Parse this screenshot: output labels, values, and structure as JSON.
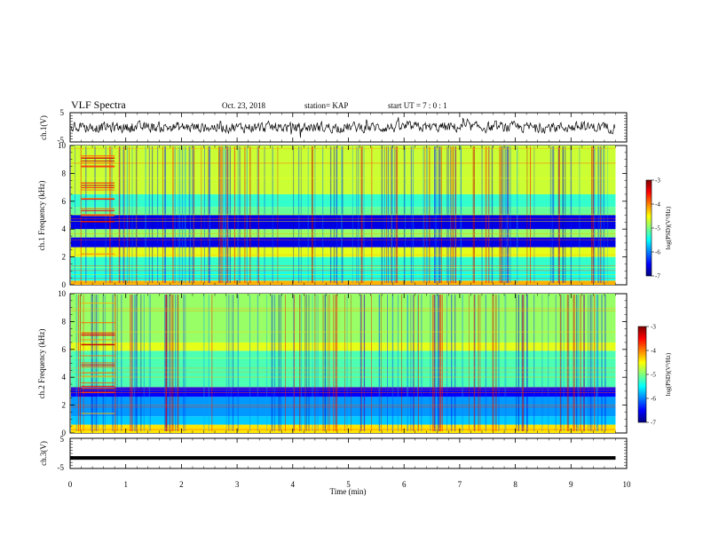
{
  "header": {
    "title": "VLF Spectra",
    "date": "Oct. 23, 2018",
    "station": "station= KAP",
    "start_ut": "start  UT =   7 : 0  : 1"
  },
  "chart_data": [
    {
      "type": "line",
      "panel": "ch1-waveform",
      "ylabel": "ch.1(V)",
      "ylim": [
        -5,
        5
      ],
      "yticks": [
        "5",
        "-5"
      ],
      "xlim": [
        0,
        10
      ],
      "series_style": "noisy waveform, approx. range -2.5 to 2.5 V"
    },
    {
      "type": "heatmap",
      "panel": "ch1-spectrogram",
      "ylabel": "ch.1 Frequency (kHz)",
      "ylim": [
        0,
        10
      ],
      "yticks": [
        "0",
        "2",
        "4",
        "6",
        "8",
        "10"
      ],
      "colorbar": {
        "label": "log(PSD)(V²/Hz)",
        "range": [
          -7,
          -3
        ],
        "ticks": [
          "-3",
          "-4",
          "-5",
          "-6",
          "-7"
        ],
        "colormap": "jet"
      },
      "bands": [
        {
          "f_lo": 0.0,
          "f_hi": 0.3,
          "level": -4.2
        },
        {
          "f_lo": 0.3,
          "f_hi": 1.0,
          "level": -5.4
        },
        {
          "f_lo": 1.0,
          "f_hi": 2.0,
          "level": -5.3
        },
        {
          "f_lo": 2.0,
          "f_hi": 2.7,
          "level": -4.6
        },
        {
          "f_lo": 2.7,
          "f_hi": 3.4,
          "level": -6.6
        },
        {
          "f_lo": 3.4,
          "f_hi": 4.0,
          "level": -4.9
        },
        {
          "f_lo": 4.0,
          "f_hi": 5.0,
          "level": -6.6
        },
        {
          "f_lo": 5.0,
          "f_hi": 5.6,
          "level": -5.1
        },
        {
          "f_lo": 5.6,
          "f_hi": 6.5,
          "level": -5.3
        },
        {
          "f_lo": 6.5,
          "f_hi": 10.0,
          "level": -4.7
        }
      ]
    },
    {
      "type": "heatmap",
      "panel": "ch2-spectrogram",
      "ylabel": "ch.2 Frequency (kHz)",
      "ylim": [
        0,
        10
      ],
      "yticks": [
        "0",
        "2",
        "4",
        "6",
        "8",
        "10"
      ],
      "colorbar": {
        "label": "log(PSD)(V²/Hz)",
        "range": [
          -7,
          -3
        ],
        "ticks": [
          "-3",
          "-4",
          "-5",
          "-6",
          "-7"
        ],
        "colormap": "jet"
      },
      "bands": [
        {
          "f_lo": 0.0,
          "f_hi": 0.6,
          "level": -4.4
        },
        {
          "f_lo": 0.6,
          "f_hi": 1.2,
          "level": -5.7
        },
        {
          "f_lo": 1.2,
          "f_hi": 2.6,
          "level": -5.9
        },
        {
          "f_lo": 2.6,
          "f_hi": 3.3,
          "level": -6.5
        },
        {
          "f_lo": 3.3,
          "f_hi": 5.9,
          "level": -5.2
        },
        {
          "f_lo": 5.9,
          "f_hi": 6.5,
          "level": -4.6
        },
        {
          "f_lo": 6.5,
          "f_hi": 10.0,
          "level": -4.9
        }
      ]
    },
    {
      "type": "line",
      "panel": "ch3-waveform",
      "ylabel": "ch.3(V)",
      "ylim": [
        -5,
        5
      ],
      "yticks": [
        "5",
        "-5"
      ],
      "xlim": [
        0,
        10
      ],
      "series": [
        {
          "x": [
            0,
            9.8
          ],
          "y": [
            -1.5,
            -1.5
          ]
        }
      ]
    }
  ],
  "x_axis": {
    "xlabel": "Time  (min)",
    "xlim": [
      0,
      10
    ],
    "ticks": [
      "0",
      "1",
      "2",
      "3",
      "4",
      "5",
      "6",
      "7",
      "8",
      "9",
      "10"
    ],
    "data_end": 9.8
  }
}
